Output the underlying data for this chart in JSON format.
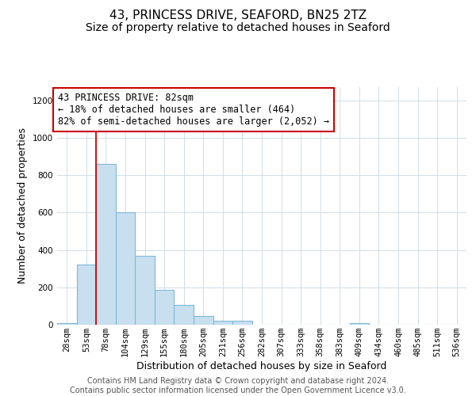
{
  "title": "43, PRINCESS DRIVE, SEAFORD, BN25 2TZ",
  "subtitle": "Size of property relative to detached houses in Seaford",
  "xlabel": "Distribution of detached houses by size in Seaford",
  "ylabel": "Number of detached properties",
  "bin_labels": [
    "28sqm",
    "53sqm",
    "78sqm",
    "104sqm",
    "129sqm",
    "155sqm",
    "180sqm",
    "205sqm",
    "231sqm",
    "256sqm",
    "282sqm",
    "307sqm",
    "333sqm",
    "358sqm",
    "383sqm",
    "409sqm",
    "434sqm",
    "460sqm",
    "485sqm",
    "511sqm",
    "536sqm"
  ],
  "bar_values": [
    10,
    320,
    860,
    600,
    370,
    185,
    105,
    45,
    20,
    20,
    0,
    0,
    0,
    0,
    0,
    10,
    0,
    0,
    0,
    0,
    0
  ],
  "bar_color": "#c8dff0",
  "bar_edge_color": "#7fb8d8",
  "vline_x": 2,
  "vline_color": "#cc0000",
  "annotation_text": "43 PRINCESS DRIVE: 82sqm\n← 18% of detached houses are smaller (464)\n82% of semi-detached houses are larger (2,052) →",
  "annotation_box_color": "white",
  "annotation_box_edge_color": "#cc0000",
  "ylim": [
    0,
    1270
  ],
  "yticks": [
    0,
    200,
    400,
    600,
    800,
    1000,
    1200
  ],
  "footer_line1": "Contains HM Land Registry data © Crown copyright and database right 2024.",
  "footer_line2": "Contains public sector information licensed under the Open Government Licence v3.0.",
  "title_fontsize": 11,
  "subtitle_fontsize": 10,
  "xlabel_fontsize": 9,
  "ylabel_fontsize": 9,
  "tick_fontsize": 7.5,
  "annotation_fontsize": 8.5,
  "footer_fontsize": 7,
  "grid_color": "#d0dde8"
}
